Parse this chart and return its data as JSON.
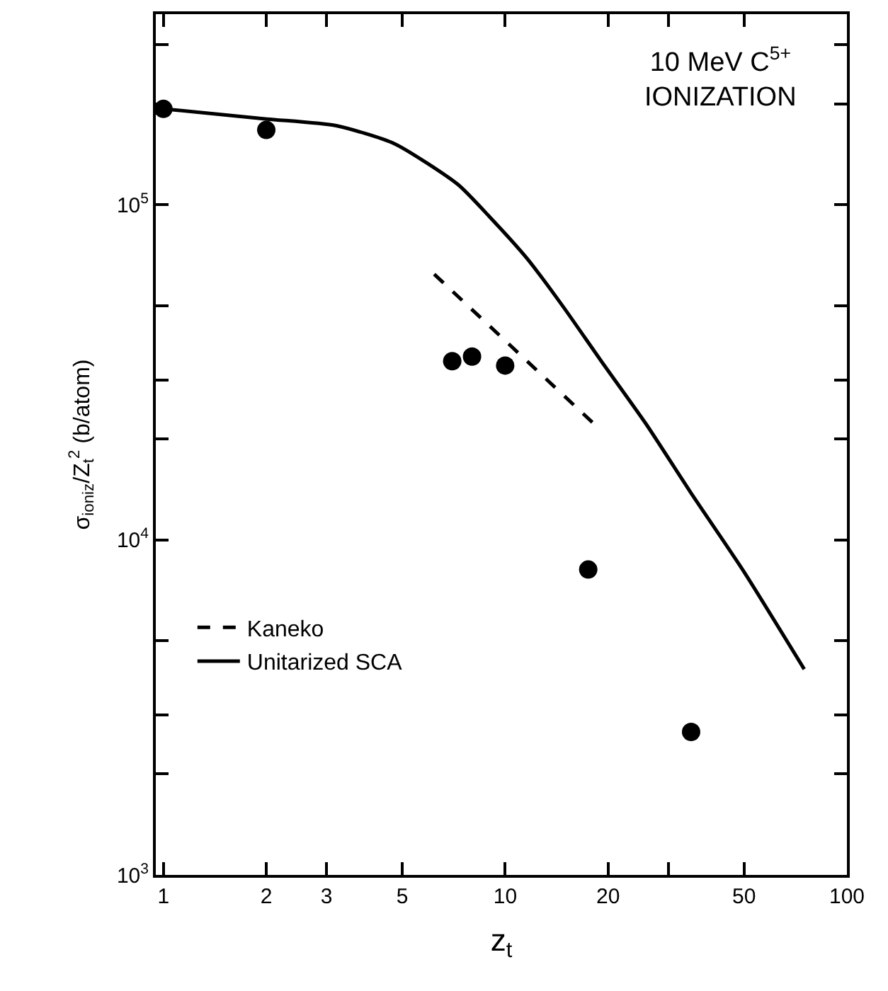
{
  "chart_data": {
    "type": "scatter",
    "xlabel": "z$_{t}$",
    "ylabel": "σ$_{ioniz}$/Z$_{t}$$^{2}$ (b/atom)",
    "annotations": [
      "10 MeV C$^{5+}$\nIONIZATION"
    ],
    "log": "xy",
    "xlim": [
      0.95,
      100
    ],
    "xticks": [
      1,
      2,
      3,
      5,
      10,
      20,
      {
        "value": 30,
        "label": null
      },
      50,
      100
    ],
    "ylim": [
      1000,
      370000
    ],
    "yticks": [
      {
        "value": 1000,
        "label": "10$^{3}$"
      },
      {
        "value": 2000,
        "label": null
      },
      {
        "value": 3000,
        "label": null
      },
      {
        "value": 5000,
        "label": null
      },
      {
        "value": 10000,
        "label": "10$^{4}$"
      },
      {
        "value": 20000,
        "label": null
      },
      {
        "value": 30000,
        "label": null
      },
      {
        "value": 50000,
        "label": null
      },
      {
        "value": 100000,
        "label": "10$^{5}$"
      },
      {
        "value": 200000,
        "label": null
      },
      {
        "value": 300000,
        "label": null
      }
    ],
    "legend": "bottom left",
    "series": [
      {
        "color": "#000000",
        "marker": "circle",
        "x": [
          1,
          2,
          7,
          8,
          10,
          17.5,
          35
        ],
        "values": [
          193000,
          167000,
          34100,
          35200,
          33100,
          8150,
          2670
        ]
      },
      {
        "type": "line",
        "name": "Kaneko",
        "color": "#000000",
        "line_style": "dashed",
        "x": [
          6.2,
          18.7
        ],
        "values": [
          62000,
          21600
        ]
      },
      {
        "type": "line",
        "name": "Unitarized SCA",
        "color": "#000000",
        "line_style": "solid",
        "x": [
          1,
          2.01,
          3.2,
          4.74,
          7.26,
          9.0,
          11.6,
          14.8,
          19.0,
          25.8,
          34.8,
          49.8,
          75
        ],
        "values": [
          193000,
          180000,
          172000,
          152000,
          115000,
          92000,
          69000,
          49500,
          34400,
          22200,
          13900,
          8070,
          4110
        ]
      }
    ]
  }
}
